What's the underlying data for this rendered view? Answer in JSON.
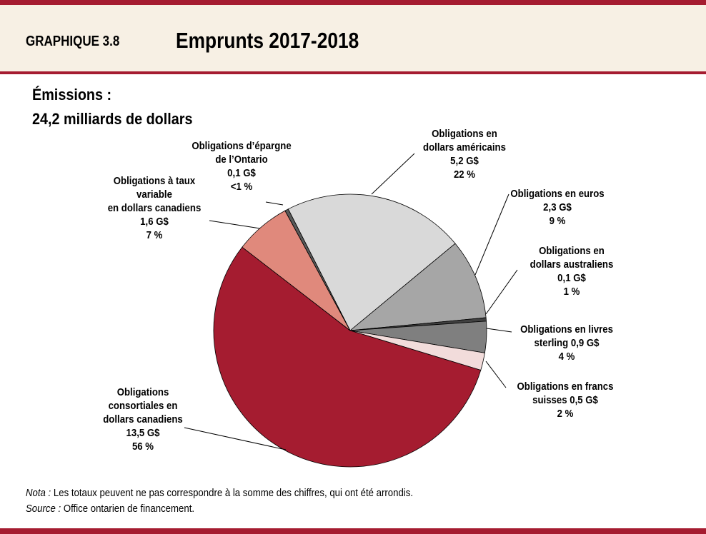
{
  "header": {
    "number": "GRAPHIQUE 3.8",
    "title": "Emprunts 2017-2018"
  },
  "subtitle": {
    "line1": "Émissions :",
    "line2": "24,2 milliards de dollars"
  },
  "chart_data": {
    "type": "pie",
    "title": "Emprunts 2017-2018",
    "slices": [
      {
        "name": "Obligations en dollars américains",
        "value": 5.2,
        "percent": "22 %",
        "color": "#d9d9d9",
        "label": [
          "Obligations en",
          "dollars américains",
          "5,2 G$",
          "22 %"
        ]
      },
      {
        "name": "Obligations en euros",
        "value": 2.3,
        "percent": "9 %",
        "color": "#a6a6a6",
        "label": [
          "Obligations en euros",
          "2,3 G$",
          "9 %"
        ]
      },
      {
        "name": "Obligations en dollars australiens",
        "value": 0.1,
        "percent": "1 %",
        "color": "#404040",
        "label": [
          "Obligations en",
          "dollars australiens",
          "0,1 G$",
          "1 %"
        ]
      },
      {
        "name": "Obligations en livres sterling",
        "value": 0.9,
        "percent": "4 %",
        "color": "#7f7f7f",
        "label": [
          "Obligations en livres",
          "sterling 0,9 G$",
          "4 %"
        ]
      },
      {
        "name": "Obligations en francs suisses",
        "value": 0.5,
        "percent": "2 %",
        "color": "#f2dcdb",
        "label": [
          "Obligations en francs",
          "suisses 0,5 G$",
          "2 %"
        ]
      },
      {
        "name": "Obligations consortiales en dollars canadiens",
        "value": 13.5,
        "percent": "56 %",
        "color": "#a51c30",
        "label": [
          "Obligations",
          "consortiales en",
          "dollars canadiens",
          "13,5 G$",
          "56 %"
        ]
      },
      {
        "name": "Obligations à taux variable en dollars canadiens",
        "value": 1.6,
        "percent": "7 %",
        "color": "#e0897c",
        "label": [
          "Obligations à taux",
          "variable",
          "en dollars canadiens",
          "1,6 G$",
          "7 %"
        ]
      },
      {
        "name": "Obligations d’épargne de l’Ontario",
        "value": 0.1,
        "percent": "<1 %",
        "color": "#595959",
        "label": [
          "Obligations d’épargne",
          "de l’Ontario",
          "0,1 G$",
          "<1 %"
        ]
      }
    ]
  },
  "footer": {
    "nota_label": "Nota :",
    "nota_text": " Les totaux peuvent ne pas correspondre à la somme des chiffres, qui ont été arrondis.",
    "source_label": "Source :",
    "source_text": " Office ontarien de financement."
  }
}
